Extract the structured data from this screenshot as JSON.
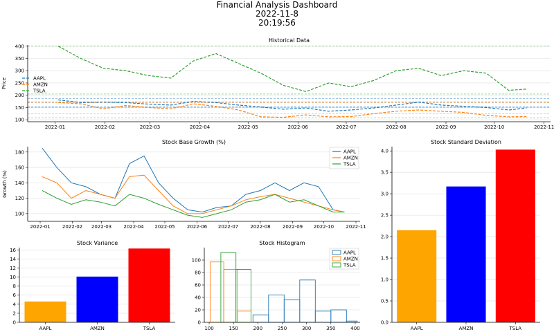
{
  "dashboard": {
    "title": "Financial Analysis Dashboard",
    "date": "2022-11-8",
    "time": "20:19:56"
  },
  "colors": {
    "AAPL": "#1f77b4",
    "AMZN": "#ff7f0e",
    "TSLA": "#2ca02c",
    "bar_AAPL": "#ffa500",
    "bar_AMZN": "#0000ff",
    "bar_TSLA": "#ff0000"
  },
  "chart_data": [
    {
      "id": "historical",
      "type": "line",
      "title": "Historical Data",
      "ylabel": "Price",
      "xlabel": "",
      "ylim": [
        92,
        405
      ],
      "y_ticks": [
        100,
        150,
        200,
        250,
        300,
        350,
        400
      ],
      "x_ticks": [
        "2022-01",
        "2022-02",
        "2022-03",
        "2022-04",
        "2022-05",
        "2022-06",
        "2022-07",
        "2022-08",
        "2022-09",
        "2022-10",
        "2022-11"
      ],
      "x_range": [
        "2021-12-15",
        "2022-11-05"
      ],
      "legend_position": "center-left",
      "x": [
        "2022-01-03",
        "2022-01-17",
        "2022-01-31",
        "2022-02-14",
        "2022-02-28",
        "2022-03-14",
        "2022-03-28",
        "2022-04-11",
        "2022-04-25",
        "2022-05-09",
        "2022-05-23",
        "2022-06-06",
        "2022-06-20",
        "2022-07-04",
        "2022-07-18",
        "2022-08-01",
        "2022-08-15",
        "2022-08-29",
        "2022-09-12",
        "2022-09-26",
        "2022-10-10",
        "2022-10-21"
      ],
      "series": [
        {
          "name": "AAPL",
          "values": [
            181,
            170,
            172,
            170,
            164,
            160,
            175,
            170,
            160,
            152,
            143,
            148,
            135,
            140,
            148,
            160,
            172,
            160,
            155,
            150,
            140,
            148
          ]
        },
        {
          "name": "AMZN",
          "values": [
            170,
            165,
            145,
            158,
            150,
            145,
            165,
            155,
            140,
            112,
            110,
            120,
            112,
            113,
            125,
            135,
            140,
            135,
            130,
            118,
            112,
            113
          ]
        },
        {
          "name": "TSLA",
          "values": [
            400,
            350,
            310,
            300,
            280,
            270,
            340,
            370,
            330,
            290,
            240,
            215,
            250,
            235,
            260,
            300,
            310,
            280,
            300,
            290,
            220,
            225
          ]
        }
      ],
      "hlines": [
        {
          "series": "AAPL",
          "values": [
            186,
            173,
            153
          ]
        },
        {
          "series": "AMZN",
          "values": [
            170,
            150,
            125
          ]
        },
        {
          "series": "TSLA",
          "values": [
            400,
            205,
            108
          ]
        }
      ]
    },
    {
      "id": "growth",
      "type": "line",
      "title": "Stock Base Growth (%)",
      "ylabel": "Growth (%)",
      "xlabel": "",
      "ylim": [
        90,
        187
      ],
      "y_ticks": [
        100,
        120,
        140,
        160,
        180
      ],
      "x_ticks": [
        "2022-01",
        "2022-02",
        "2022-03",
        "2022-04",
        "2022-05",
        "2022-06",
        "2022-07",
        "2022-08",
        "2022-09",
        "2022-10",
        "2022-11"
      ],
      "x_range": [
        "2021-12-20",
        "2022-11-05"
      ],
      "legend_position": "top-right",
      "x": [
        "2022-01-03",
        "2022-01-17",
        "2022-01-31",
        "2022-02-14",
        "2022-02-28",
        "2022-03-14",
        "2022-03-28",
        "2022-04-11",
        "2022-04-25",
        "2022-05-09",
        "2022-05-23",
        "2022-06-06",
        "2022-06-20",
        "2022-07-04",
        "2022-07-18",
        "2022-08-01",
        "2022-08-15",
        "2022-08-29",
        "2022-09-12",
        "2022-09-26",
        "2022-10-10",
        "2022-10-21"
      ],
      "series": [
        {
          "name": "AAPL",
          "values": [
            185,
            160,
            140,
            135,
            125,
            120,
            165,
            175,
            140,
            120,
            105,
            102,
            108,
            110,
            125,
            130,
            140,
            130,
            140,
            135,
            105,
            102
          ]
        },
        {
          "name": "AMZN",
          "values": [
            148,
            140,
            120,
            130,
            125,
            120,
            148,
            150,
            130,
            110,
            100,
            100,
            105,
            110,
            118,
            122,
            125,
            120,
            115,
            110,
            105,
            102
          ]
        },
        {
          "name": "TSLA",
          "values": [
            130,
            120,
            112,
            118,
            115,
            110,
            125,
            120,
            112,
            105,
            98,
            95,
            100,
            105,
            115,
            118,
            125,
            115,
            118,
            110,
            102,
            102
          ]
        }
      ]
    },
    {
      "id": "stddev",
      "type": "bar",
      "title": "Stock Standard Deviation",
      "xlabel": "",
      "ylabel": "",
      "ylim": [
        0,
        4.1
      ],
      "y_ticks": [
        "0.0",
        "0.5",
        "1.0",
        "1.5",
        "2.0",
        "2.5",
        "3.0",
        "3.5",
        "4.0"
      ],
      "categories": [
        "AAPL",
        "AMZN",
        "TSLA"
      ],
      "values": [
        2.15,
        3.17,
        4.03
      ]
    },
    {
      "id": "variance",
      "type": "bar",
      "title": "Stock Variance",
      "xlabel": "",
      "ylabel": "",
      "ylim": [
        0,
        16.5
      ],
      "y_ticks": [
        "0",
        "2",
        "4",
        "6",
        "8",
        "10",
        "12",
        "14",
        "16"
      ],
      "categories": [
        "AAPL",
        "AMZN",
        "TSLA"
      ],
      "values": [
        4.6,
        10.1,
        16.3
      ]
    },
    {
      "id": "histogram",
      "type": "bar",
      "title": "Stock Histogram",
      "xlabel": "",
      "ylabel": "",
      "xlim": [
        90,
        410
      ],
      "ylim": [
        0,
        120
      ],
      "x_ticks": [
        100,
        150,
        200,
        250,
        300,
        350,
        400
      ],
      "y_ticks": [
        0,
        20,
        40,
        60,
        80,
        100
      ],
      "legend_position": "top-right",
      "series": [
        {
          "name": "AAPL",
          "edges": [
            190,
            222,
            254,
            286,
            318,
            350,
            382,
            404
          ],
          "counts": [
            12,
            44,
            36,
            68,
            18,
            20,
            2
          ]
        },
        {
          "name": "AMZN",
          "edges": [
            102,
            130,
            158,
            186
          ],
          "counts": [
            97,
            85,
            18
          ]
        },
        {
          "name": "TSLA",
          "edges": [
            124,
            155,
            186
          ],
          "counts": [
            112,
            85
          ]
        }
      ]
    }
  ]
}
